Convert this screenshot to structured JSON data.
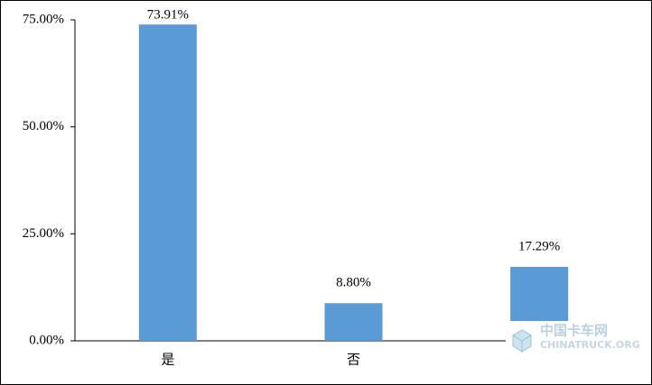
{
  "chart_data": {
    "type": "bar",
    "categories": [
      "是",
      "否",
      null
    ],
    "values": [
      73.91,
      8.8,
      17.29
    ],
    "value_labels": [
      "73.91%",
      "8.80%",
      "17.29%"
    ],
    "color": "#5b9bd5",
    "ylim": [
      0,
      75
    ],
    "yticks": [
      {
        "value": 0,
        "label": "0.00%"
      },
      {
        "value": 25,
        "label": "25.00%"
      },
      {
        "value": 50,
        "label": "50.00%"
      },
      {
        "value": 75,
        "label": "75.00%"
      }
    ],
    "grid": false
  },
  "watermark": {
    "title": "中国卡车网",
    "subtitle": "CHINATRUCK.ORG"
  }
}
